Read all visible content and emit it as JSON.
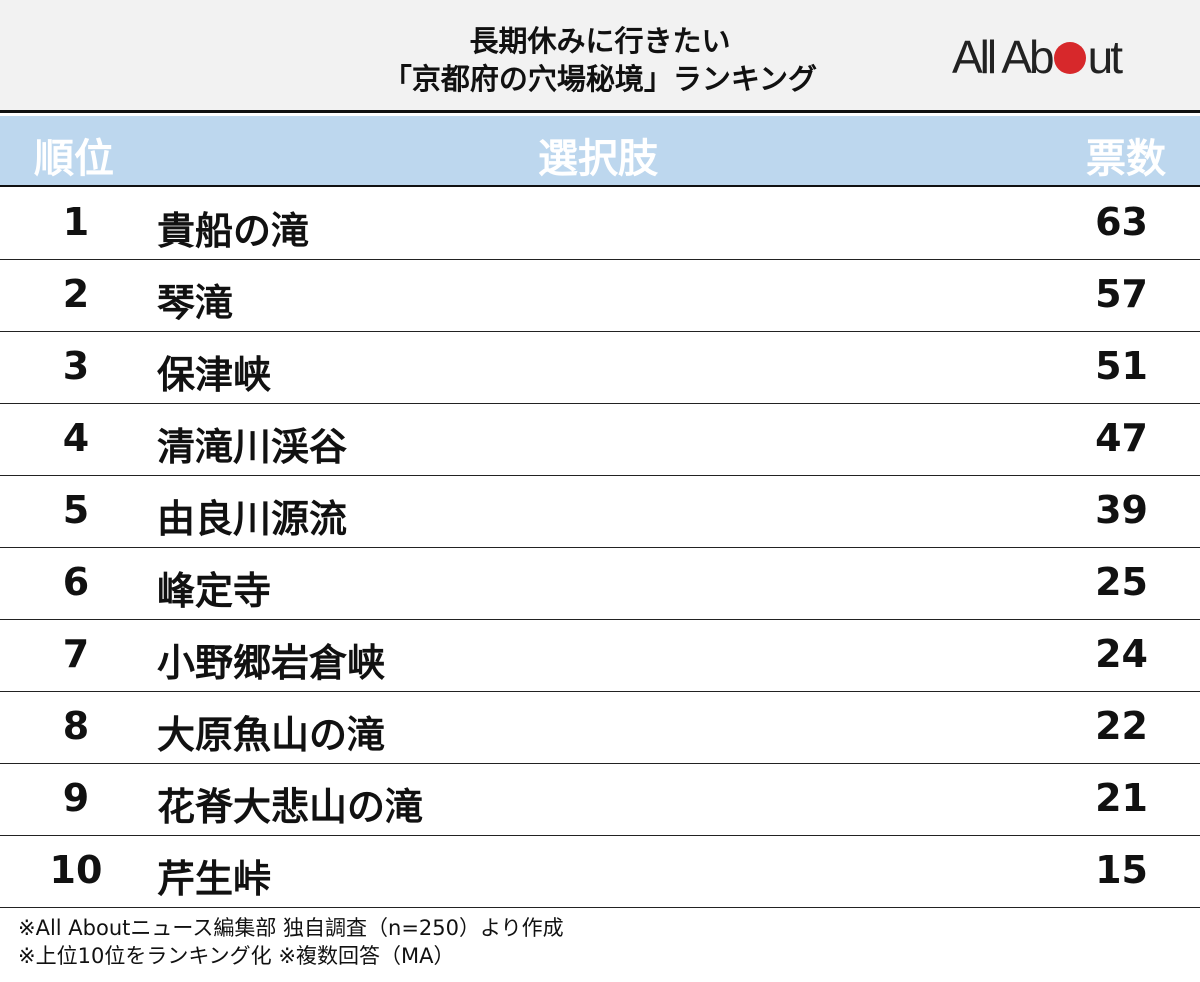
{
  "title_line1": "長期休みに行きたい",
  "title_line2": "「京都府の穴場秘境」ランキング",
  "logo": "All About",
  "colors": {
    "header_band": "#bdd7ee",
    "top_band": "#f2f2f2",
    "logo_dot": "#d7282b"
  },
  "chart_data": {
    "type": "table",
    "columns": [
      "順位",
      "選択肢",
      "票数"
    ],
    "rows": [
      {
        "rank": "1",
        "name": "貴船の滝",
        "votes": "63"
      },
      {
        "rank": "2",
        "name": "琴滝",
        "votes": "57"
      },
      {
        "rank": "3",
        "name": "保津峡",
        "votes": "51"
      },
      {
        "rank": "4",
        "name": "清滝川渓谷",
        "votes": "47"
      },
      {
        "rank": "5",
        "name": "由良川源流",
        "votes": "39"
      },
      {
        "rank": "6",
        "name": "峰定寺",
        "votes": "25"
      },
      {
        "rank": "7",
        "name": "小野郷岩倉峡",
        "votes": "24"
      },
      {
        "rank": "8",
        "name": "大原魚山の滝",
        "votes": "22"
      },
      {
        "rank": "9",
        "name": "花脊大悲山の滝",
        "votes": "21"
      },
      {
        "rank": "10",
        "name": "芹生峠",
        "votes": "15"
      }
    ]
  },
  "footnote1": "※All Aboutニュース編集部 独自調査（n=250）より作成",
  "footnote2": "※上位10位をランキング化 ※複数回答（MA）"
}
